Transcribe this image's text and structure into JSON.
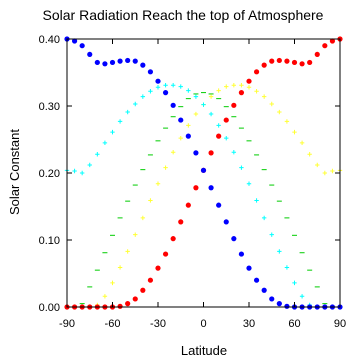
{
  "chart_data": {
    "type": "scatter",
    "title": "Solar Radiation Reach the top of Atmosphere",
    "xlabel": "Latitude",
    "ylabel": "Solar Constant",
    "xlim": [
      -90,
      90
    ],
    "ylim": [
      0,
      0.4
    ],
    "xticks": [
      "-90",
      "-60",
      "-30",
      "0",
      "30",
      "60",
      "90"
    ],
    "yticks": [
      "0.00",
      "0.10",
      "0.20",
      "0.30",
      "0.40"
    ],
    "grid": false,
    "legend": "none",
    "x": [
      -90,
      -85,
      -80,
      -75,
      -70,
      -65,
      -60,
      -55,
      -50,
      -45,
      -40,
      -35,
      -30,
      -25,
      -20,
      -15,
      -10,
      -5,
      0,
      5,
      10,
      15,
      20,
      25,
      30,
      35,
      40,
      45,
      50,
      55,
      60,
      65,
      70,
      75,
      80,
      85,
      90
    ],
    "series": [
      {
        "color": "#0000ff",
        "marker": "dot",
        "values": [
          0.4,
          0.397,
          0.39,
          0.377,
          0.365,
          0.363,
          0.365,
          0.367,
          0.368,
          0.367,
          0.361,
          0.351,
          0.337,
          0.32,
          0.301,
          0.279,
          0.255,
          0.23,
          0.204,
          0.178,
          0.152,
          0.127,
          0.102,
          0.079,
          0.058,
          0.04,
          0.025,
          0.012,
          0.005,
          0.001,
          0.0,
          0.0,
          0.0,
          0.0,
          0.0,
          0.0,
          0.0
        ]
      },
      {
        "color": "#00ffff",
        "marker": "cross",
        "values": [
          0.204,
          0.203,
          0.2,
          0.212,
          0.228,
          0.245,
          0.261,
          0.277,
          0.291,
          0.303,
          0.314,
          0.322,
          0.328,
          0.331,
          0.331,
          0.329,
          0.323,
          0.314,
          0.302,
          0.288,
          0.271,
          0.252,
          0.231,
          0.208,
          0.184,
          0.159,
          0.133,
          0.108,
          0.083,
          0.059,
          0.036,
          0.016,
          0.003,
          0.0,
          0.0,
          0.0,
          0.0
        ]
      },
      {
        "color": "#00cc00",
        "marker": "dash",
        "values": [
          0.0,
          0.0,
          0.005,
          0.03,
          0.055,
          0.081,
          0.107,
          0.133,
          0.158,
          0.182,
          0.205,
          0.227,
          0.248,
          0.267,
          0.284,
          0.299,
          0.311,
          0.318,
          0.32,
          0.318,
          0.311,
          0.299,
          0.284,
          0.267,
          0.248,
          0.227,
          0.205,
          0.182,
          0.158,
          0.133,
          0.107,
          0.081,
          0.055,
          0.03,
          0.005,
          0.0,
          0.0
        ]
      },
      {
        "color": "#ffff33",
        "marker": "cross",
        "values": [
          0.0,
          0.0,
          0.0,
          0.0,
          0.003,
          0.016,
          0.036,
          0.059,
          0.083,
          0.108,
          0.133,
          0.159,
          0.184,
          0.208,
          0.231,
          0.252,
          0.271,
          0.288,
          0.302,
          0.314,
          0.323,
          0.329,
          0.331,
          0.331,
          0.328,
          0.322,
          0.314,
          0.303,
          0.291,
          0.277,
          0.261,
          0.245,
          0.228,
          0.212,
          0.2,
          0.203,
          0.204
        ]
      },
      {
        "color": "#ff0000",
        "marker": "dot",
        "values": [
          0.0,
          0.0,
          0.0,
          0.0,
          0.0,
          0.0,
          0.0,
          0.001,
          0.005,
          0.012,
          0.025,
          0.04,
          0.058,
          0.079,
          0.102,
          0.127,
          0.152,
          0.178,
          0.204,
          0.23,
          0.255,
          0.279,
          0.301,
          0.32,
          0.337,
          0.351,
          0.361,
          0.367,
          0.368,
          0.367,
          0.365,
          0.363,
          0.365,
          0.377,
          0.39,
          0.397,
          0.4
        ]
      }
    ]
  }
}
